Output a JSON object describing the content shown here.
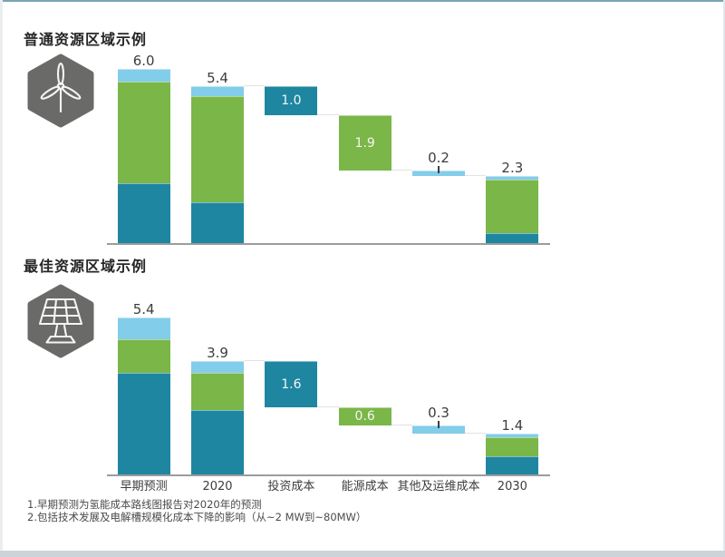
{
  "colors": {
    "teal": "#1e86a0",
    "green": "#7ab648",
    "light_blue": "#82cdea",
    "icon_gray": "#6a6a68",
    "icon_stroke": "#f5f5f5",
    "axis_line": "#9c9c9c",
    "connector": "#e2e2e2",
    "tick": "#3f3f3f",
    "title_text": "#262626",
    "label_text": "#3d3d3d",
    "footnote_text": "#4b4b4b"
  },
  "x_axis_labels": [
    "早期预测",
    "2020",
    "投资成本",
    "能源成本",
    "其他及运维成本",
    "2030"
  ],
  "footnotes": [
    "1.早期预测为氢能成本路线图报告对2020年的预测",
    "2.包括技术发展及电解槽规模化成本下降的影响（从~2 MW到~80MW）"
  ],
  "chart_data": [
    {
      "type": "bar",
      "subtype": "waterfall-stacked",
      "title": "普通资源区域示例",
      "icon": "wind-turbine-icon",
      "categories": [
        "早期预测",
        "2020",
        "投资成本",
        "能源成本",
        "其他及运维成本",
        "2030"
      ],
      "ylim": [
        0,
        6.5
      ],
      "grid": false,
      "legend": false,
      "bars": [
        {
          "category": "早期预测",
          "style": "stacked",
          "total": 6.0,
          "label": "6.0",
          "label_position": "above",
          "segments": [
            {
              "color": "teal",
              "value": 2.05
            },
            {
              "color": "green",
              "value": 3.52
            },
            {
              "color": "light_blue",
              "value": 0.43
            }
          ]
        },
        {
          "category": "2020",
          "style": "stacked",
          "total": 5.4,
          "label": "5.4",
          "label_position": "above",
          "segments": [
            {
              "color": "teal",
              "value": 1.42
            },
            {
              "color": "green",
              "value": 3.65
            },
            {
              "color": "light_blue",
              "value": 0.33
            }
          ]
        },
        {
          "category": "投资成本",
          "style": "floating",
          "value": 1.0,
          "top": 5.4,
          "bottom": 4.4,
          "color": "teal",
          "label": "1.0",
          "label_position": "inside"
        },
        {
          "category": "能源成本",
          "style": "floating",
          "value": 1.9,
          "top": 4.4,
          "bottom": 2.5,
          "color": "green",
          "label": "1.9",
          "label_position": "inside"
        },
        {
          "category": "其他及运维成本",
          "style": "floating",
          "value": 0.2,
          "top": 2.5,
          "bottom": 2.3,
          "color": "light_blue",
          "label": "0.2",
          "label_position": "above_tick"
        },
        {
          "category": "2030",
          "style": "stacked",
          "total": 2.3,
          "label": "2.3",
          "label_position": "above",
          "segments": [
            {
              "color": "teal",
              "value": 0.35
            },
            {
              "color": "green",
              "value": 1.83
            },
            {
              "color": "light_blue",
              "value": 0.12
            }
          ]
        }
      ],
      "connectors": [
        {
          "from": 1,
          "to": 2,
          "level": 5.4
        },
        {
          "from": 2,
          "to": 3,
          "level": 4.4
        },
        {
          "from": 3,
          "to": 4,
          "level": 2.5
        },
        {
          "from": 4,
          "to": 5,
          "level": 2.3
        }
      ]
    },
    {
      "type": "bar",
      "subtype": "waterfall-stacked",
      "title": "最佳资源区域示例",
      "icon": "solar-panel-icon",
      "categories": [
        "早期预测",
        "2020",
        "投资成本",
        "能源成本",
        "其他及运维成本",
        "2030"
      ],
      "ylim": [
        0,
        6.5
      ],
      "grid": false,
      "legend": false,
      "bars": [
        {
          "category": "早期预测",
          "style": "stacked",
          "total": 5.4,
          "label": "5.4",
          "label_position": "above",
          "segments": [
            {
              "color": "teal",
              "value": 3.5
            },
            {
              "color": "green",
              "value": 1.17
            },
            {
              "color": "light_blue",
              "value": 0.73
            }
          ]
        },
        {
          "category": "2020",
          "style": "stacked",
          "total": 3.9,
          "label": "3.9",
          "label_position": "above",
          "segments": [
            {
              "color": "teal",
              "value": 2.23
            },
            {
              "color": "green",
              "value": 1.27
            },
            {
              "color": "light_blue",
              "value": 0.4
            }
          ]
        },
        {
          "category": "投资成本",
          "style": "floating",
          "value": 1.6,
          "top": 3.9,
          "bottom": 2.3,
          "color": "teal",
          "label": "1.6",
          "label_position": "inside"
        },
        {
          "category": "能源成本",
          "style": "floating",
          "value": 0.6,
          "top": 2.3,
          "bottom": 1.7,
          "color": "green",
          "label": "0.6",
          "label_position": "inside"
        },
        {
          "category": "其他及运维成本",
          "style": "floating",
          "value": 0.3,
          "top": 1.7,
          "bottom": 1.4,
          "color": "light_blue",
          "label": "0.3",
          "label_position": "above_tick"
        },
        {
          "category": "2030",
          "style": "stacked",
          "total": 1.4,
          "label": "1.4",
          "label_position": "above",
          "segments": [
            {
              "color": "teal",
              "value": 0.62
            },
            {
              "color": "green",
              "value": 0.65
            },
            {
              "color": "light_blue",
              "value": 0.13
            }
          ]
        }
      ],
      "connectors": [
        {
          "from": 1,
          "to": 2,
          "level": 3.9
        },
        {
          "from": 2,
          "to": 3,
          "level": 2.3
        },
        {
          "from": 3,
          "to": 4,
          "level": 1.7
        },
        {
          "from": 4,
          "to": 5,
          "level": 1.4
        }
      ]
    }
  ]
}
